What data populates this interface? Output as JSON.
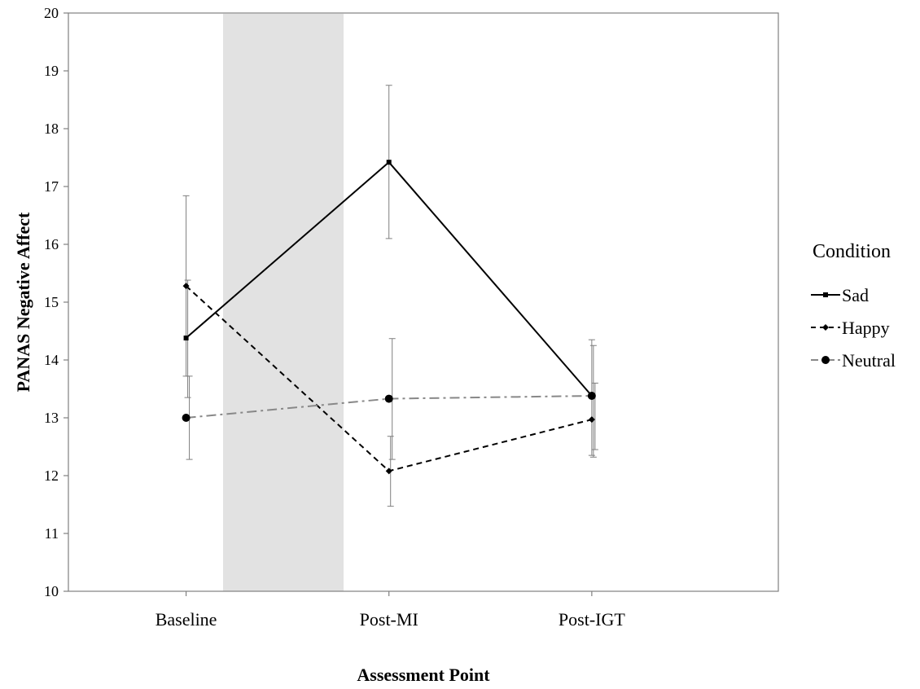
{
  "chart_data": {
    "type": "line",
    "categories": [
      "Baseline",
      "Post-MI",
      "Post-IGT"
    ],
    "xlabel": "Assessment Point",
    "ylabel": "PANAS Negative Affect",
    "ylim": [
      10,
      20
    ],
    "yticks": [
      10,
      11,
      12,
      13,
      14,
      15,
      16,
      17,
      18,
      19,
      20
    ],
    "grid": false,
    "legend": {
      "title": "Condition",
      "placement": "right"
    },
    "shaded_band": {
      "from": "Baseline",
      "to": "Post-MI",
      "color": "#e2e2e2"
    },
    "series": [
      {
        "name": "Sad",
        "values": [
          14.38,
          17.42,
          13.38
        ],
        "error_low": [
          13.72,
          16.1,
          12.35
        ],
        "error_high": [
          16.84,
          18.75,
          14.35
        ],
        "line_style": "solid",
        "marker": "square",
        "color": "#000000"
      },
      {
        "name": "Happy",
        "values": [
          15.28,
          12.08,
          12.97
        ],
        "error_low": [
          13.35,
          11.47,
          12.32
        ],
        "error_high": [
          15.38,
          12.68,
          14.25
        ],
        "line_style": "dashed",
        "marker": "diamond",
        "color": "#000000"
      },
      {
        "name": "Neutral",
        "values": [
          13.0,
          13.33,
          13.38
        ],
        "error_low": [
          12.28,
          12.28,
          12.45
        ],
        "error_high": [
          13.72,
          14.37,
          13.6
        ],
        "line_style": "dashdot",
        "marker": "circle",
        "color": "#888888",
        "marker_color": "#000000"
      }
    ]
  }
}
